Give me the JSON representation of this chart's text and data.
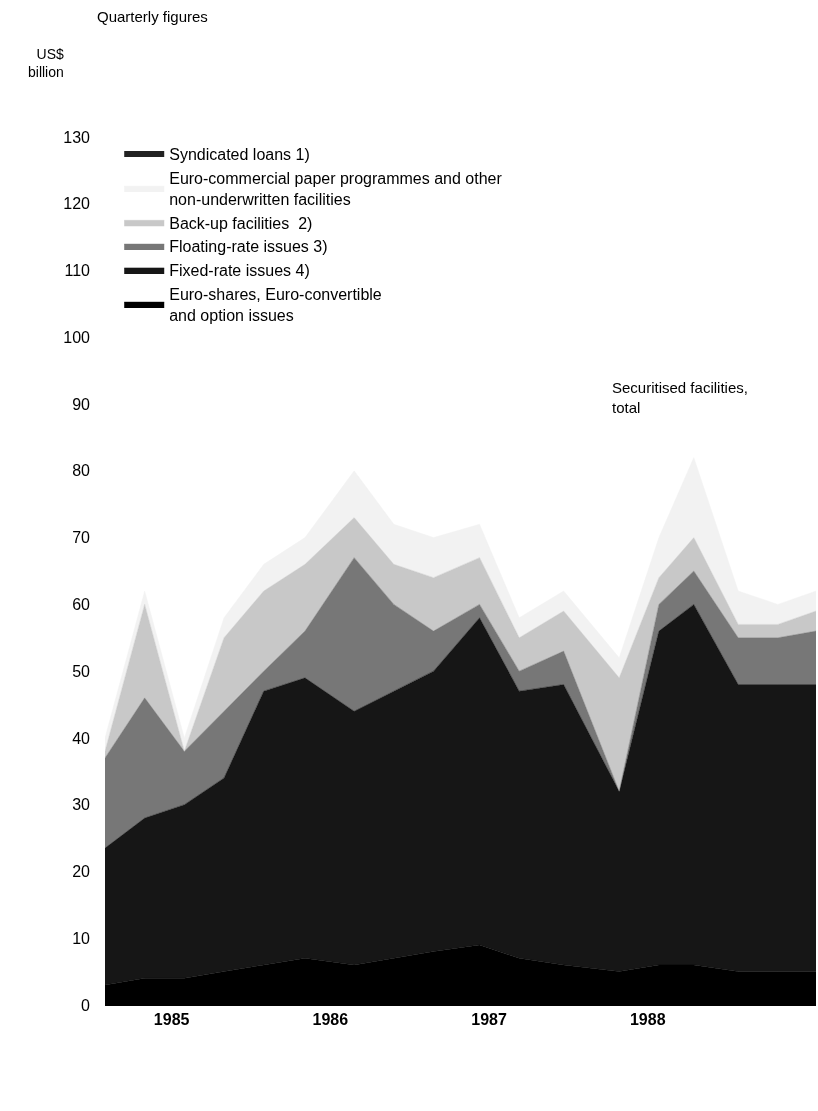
{
  "chart_data": {
    "type": "area",
    "title": "Quarterly figures",
    "ylabel": "US$ billion",
    "stacked": true,
    "legend": "top left",
    "x": [
      1985.08,
      1985.33,
      1985.58,
      1985.83,
      1986.08,
      1986.34,
      1986.65,
      1986.9,
      1987.15,
      1987.44,
      1987.69,
      1987.97,
      1988.32,
      1988.57,
      1988.79,
      1989.07,
      1989.32,
      1989.56
    ],
    "xlim": [
      1985.08,
      1989.56
    ],
    "xticks": [
      {
        "value": 1985.5,
        "label": "1985"
      },
      {
        "value": 1986.5,
        "label": "1986"
      },
      {
        "value": 1987.5,
        "label": "1987"
      },
      {
        "value": 1988.5,
        "label": "1988"
      }
    ],
    "ylim": [
      0,
      130
    ],
    "yticks": [
      0,
      10,
      20,
      30,
      40,
      50,
      60,
      70,
      80,
      90,
      100,
      110,
      120,
      130
    ],
    "series": [
      {
        "name": "Euro-shares, Euro-convertible\nand option issues",
        "color": "#000000",
        "values": [
          3,
          4,
          4,
          5,
          6,
          7,
          6,
          7,
          8,
          9,
          7,
          6,
          5,
          6,
          6,
          5,
          5,
          5
        ]
      },
      {
        "name": "Fixed-rate issues 4)",
        "color": "#161616",
        "values": [
          20.5,
          24,
          26,
          29,
          41,
          42,
          38,
          40,
          42,
          49,
          40,
          42,
          27,
          50,
          54,
          43,
          43,
          43
        ]
      },
      {
        "name": "Floating-rate issues 3)",
        "color": "#777777",
        "values": [
          13.5,
          18,
          8,
          10,
          3,
          7,
          23,
          13,
          6,
          2,
          3,
          5,
          0,
          4,
          5,
          7,
          7,
          8
        ]
      },
      {
        "name": "Back-up facilities  2)",
        "color": "#c8c8c8",
        "values": [
          1,
          14,
          0,
          11,
          12,
          10,
          6,
          6,
          8,
          7,
          5,
          6,
          17,
          4,
          5,
          2,
          2,
          3
        ]
      },
      {
        "name": "Euro-commercial paper programmes and other\nnon-underwritten facilities",
        "color": "#f2f2f2",
        "values": [
          2,
          2,
          2,
          3,
          4,
          4,
          7,
          6,
          6,
          5,
          3,
          3,
          3,
          6,
          12,
          5,
          3,
          3
        ]
      },
      {
        "name": "Syndicated loans 1)",
        "type": "line",
        "color": "#222222",
        "values": [
          null,
          null,
          null,
          null,
          null,
          null,
          null,
          null,
          null,
          null,
          null,
          null,
          null,
          null,
          null,
          null,
          null,
          null
        ]
      }
    ],
    "annotations": [
      "Securitised facilities,\ntotal"
    ]
  }
}
